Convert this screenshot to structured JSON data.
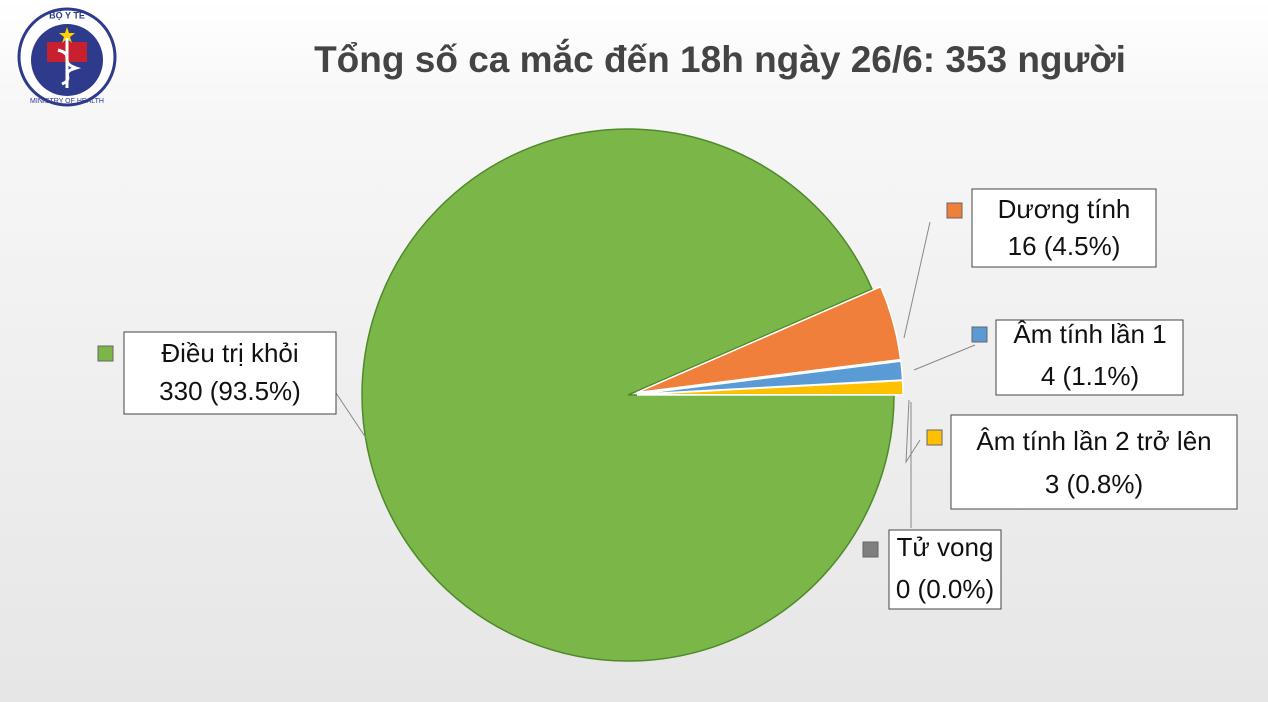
{
  "logo": {
    "top": "BỘ Y TẾ",
    "bottom": "MINISTRY OF HEALTH"
  },
  "chart_data": {
    "type": "pie",
    "title": "Tổng số ca mắc đến 18h ngày 26/6: 353 người",
    "categories": [
      "Điều trị khỏi",
      "Dương tính",
      "Âm tính lần 1",
      "Âm tính lần 2 trở lên",
      "Tử vong"
    ],
    "values": [
      330,
      16,
      4,
      3,
      0
    ],
    "value_labels": [
      "330 (93.5%)",
      "16 (4.5%)",
      "4 (1.1%)",
      "3 (0.8%)",
      "0 (0.0%)"
    ],
    "colors": [
      "#7ab648",
      "#f07f3c",
      "#5b9bd5",
      "#ffc000",
      "#7f7f7f"
    ]
  }
}
